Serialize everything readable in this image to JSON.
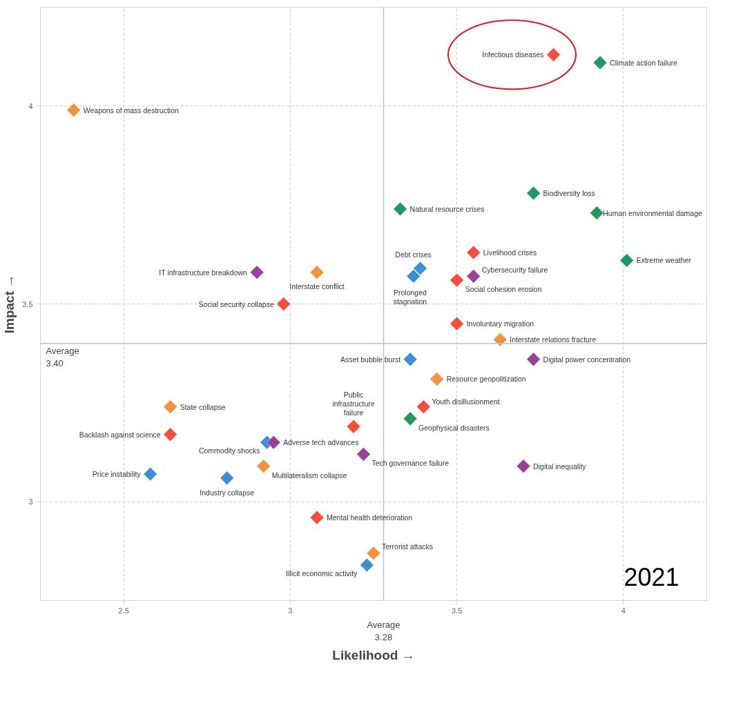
{
  "chart_data": {
    "type": "scatter",
    "xlabel": "Likelihood →",
    "ylabel": "Impact →",
    "marker": "diamond",
    "grid": true,
    "xlim": [
      2.25,
      4.25
    ],
    "ylim": [
      2.75,
      4.25
    ],
    "xticks": [
      2.5,
      3,
      3.5,
      4
    ],
    "yticks": [
      3,
      3.5,
      4
    ],
    "series": [
      {
        "color": "#f94d3a",
        "x": [
          3.79,
          3.55,
          3.5,
          2.98,
          3.5,
          3.4,
          3.19,
          2.64,
          3.08
        ],
        "values": [
          4.13,
          3.63,
          3.56,
          3.5,
          3.45,
          3.24,
          3.19,
          3.17,
          2.96
        ]
      },
      {
        "color": "#1f9a5e",
        "x": [
          3.93,
          3.73,
          3.33,
          3.92,
          4.01,
          3.36
        ],
        "values": [
          4.11,
          3.78,
          3.74,
          3.73,
          3.61,
          3.21
        ]
      },
      {
        "color": "#f5923a",
        "x": [
          2.35,
          3.08,
          3.63,
          3.44,
          2.64,
          2.92,
          3.25
        ],
        "values": [
          3.99,
          3.58,
          3.41,
          3.31,
          3.24,
          3.09,
          2.87
        ]
      },
      {
        "color": "#3a8fd9",
        "x": [
          3.39,
          3.37,
          3.36,
          2.93,
          2.58,
          2.81,
          3.23
        ],
        "values": [
          3.59,
          3.57,
          3.36,
          3.15,
          3.07,
          3.06,
          2.84
        ]
      },
      {
        "color": "#9b3f9b",
        "x": [
          3.55,
          2.9,
          3.73,
          2.95,
          3.22,
          3.7
        ],
        "values": [
          3.57,
          3.58,
          3.36,
          3.15,
          3.12,
          3.09
        ]
      }
    ],
    "ref_lines": [
      {
        "axis": "x",
        "value": 3.28,
        "label": "Average\n3.28",
        "color": "#bcc3cc"
      },
      {
        "axis": "y",
        "value": 3.4,
        "label": "Average\n3.40",
        "color": "#bcc3cc"
      }
    ],
    "annotations": [
      {
        "text": "Infectious diseases",
        "x": 3.79,
        "y": 4.13
      },
      {
        "text": "Climate action failure",
        "x": 3.93,
        "y": 4.11
      },
      {
        "text": "Weapons of mass destruction",
        "x": 2.35,
        "y": 3.99
      },
      {
        "text": "Biodiversity loss",
        "x": 3.73,
        "y": 3.78
      },
      {
        "text": "Natural resource crises",
        "x": 3.33,
        "y": 3.74
      },
      {
        "text": "Human environmental damage",
        "x": 3.92,
        "y": 3.73
      },
      {
        "text": "Livelihood crises",
        "x": 3.55,
        "y": 3.63
      },
      {
        "text": "Extreme weather",
        "x": 4.01,
        "y": 3.61
      },
      {
        "text": "Debt crises",
        "x": 3.39,
        "y": 3.59
      },
      {
        "text": "Prolonged stagnation",
        "x": 3.37,
        "y": 3.57
      },
      {
        "text": "Cybersecurity failure",
        "x": 3.55,
        "y": 3.57
      },
      {
        "text": "Social cohesion erosion",
        "x": 3.5,
        "y": 3.56
      },
      {
        "text": "IT infrastructure breakdown",
        "x": 2.9,
        "y": 3.58
      },
      {
        "text": "Interstate conflict",
        "x": 3.08,
        "y": 3.58
      },
      {
        "text": "Social security collapse",
        "x": 2.98,
        "y": 3.5
      },
      {
        "text": "Involuntary migration",
        "x": 3.5,
        "y": 3.45
      },
      {
        "text": "Interstate relations fracture",
        "x": 3.63,
        "y": 3.41
      },
      {
        "text": "Digital power concentration",
        "x": 3.73,
        "y": 3.36
      },
      {
        "text": "Asset bubble burst",
        "x": 3.36,
        "y": 3.36
      },
      {
        "text": "Resource geopolitization",
        "x": 3.44,
        "y": 3.31
      },
      {
        "text": "State collapse",
        "x": 2.64,
        "y": 3.24
      },
      {
        "text": "Youth disillusionment",
        "x": 3.4,
        "y": 3.24
      },
      {
        "text": "Geophysical disasters",
        "x": 3.36,
        "y": 3.21
      },
      {
        "text": "Public infrastructure failure",
        "x": 3.19,
        "y": 3.19
      },
      {
        "text": "Backlash against science",
        "x": 2.64,
        "y": 3.17
      },
      {
        "text": "Commodity shocks",
        "x": 2.93,
        "y": 3.15
      },
      {
        "text": "Adverse tech advances",
        "x": 2.95,
        "y": 3.15
      },
      {
        "text": "Tech governance failure",
        "x": 3.22,
        "y": 3.12
      },
      {
        "text": "Multilateralism collapse",
        "x": 2.92,
        "y": 3.09
      },
      {
        "text": "Digital inequality",
        "x": 3.7,
        "y": 3.09
      },
      {
        "text": "Price instability",
        "x": 2.58,
        "y": 3.07
      },
      {
        "text": "Industry collapse",
        "x": 2.81,
        "y": 3.06
      },
      {
        "text": "Mental health deterioration",
        "x": 3.08,
        "y": 2.96
      },
      {
        "text": "Terrorist attacks",
        "x": 3.25,
        "y": 2.87
      },
      {
        "text": "Illicit economic activity",
        "x": 3.23,
        "y": 2.84
      },
      "2021"
    ]
  }
}
